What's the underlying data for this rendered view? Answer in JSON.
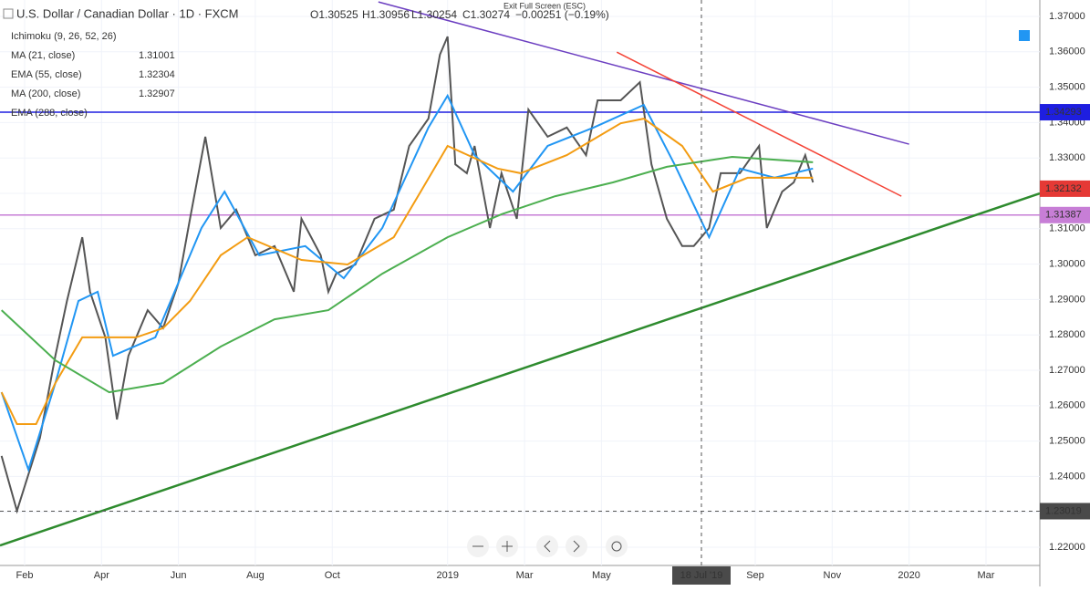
{
  "header": {
    "exit_hint": "Exit Full Screen (ESC)",
    "ohlc": [
      "O1.30525",
      "H1.30956",
      "L1.30254",
      "C1.30274",
      "−0.00251 (−0.19%)"
    ],
    "indicators": [
      "Ichimoku (9, 26, 52, 26)",
      "EMA (288, close)"
    ]
  },
  "chart_data": {
    "type": "line",
    "title": "U.S. Dollar / Canadian Dollar · 1D · FXCM",
    "xlim": [
      0.36,
      27.4
    ],
    "ylim": [
      1.21485,
      1.37464
    ],
    "xticks": [
      {
        "value": 1,
        "label": "Feb"
      },
      {
        "value": 3,
        "label": "Apr"
      },
      {
        "value": 5,
        "label": "Jun"
      },
      {
        "value": 7,
        "label": "Aug"
      },
      {
        "value": 9,
        "label": "Oct"
      },
      {
        "value": 12,
        "label": "2019"
      },
      {
        "value": 14,
        "label": "Mar"
      },
      {
        "value": 16,
        "label": "May"
      },
      {
        "value": 20,
        "label": "Sep"
      },
      {
        "value": 22,
        "label": "Nov"
      },
      {
        "value": 24,
        "label": "2020"
      },
      {
        "value": 26,
        "label": "Mar"
      }
    ],
    "yticks": [
      {
        "value": 1.22,
        "label": "1.22000"
      },
      {
        "value": 1.23,
        "label": "1.23000"
      },
      {
        "value": 1.24,
        "label": "1.24000"
      },
      {
        "value": 1.25,
        "label": "1.25000"
      },
      {
        "value": 1.26,
        "label": "1.26000"
      },
      {
        "value": 1.27,
        "label": "1.27000"
      },
      {
        "value": 1.28,
        "label": "1.28000"
      },
      {
        "value": 1.29,
        "label": "1.29000"
      },
      {
        "value": 1.3,
        "label": "1.30000"
      },
      {
        "value": 1.31,
        "label": "1.31000"
      },
      {
        "value": 1.32,
        "label": "1.32000"
      },
      {
        "value": 1.33,
        "label": "1.33000"
      },
      {
        "value": 1.34,
        "label": "1.34000"
      },
      {
        "value": 1.35,
        "label": "1.35000"
      },
      {
        "value": 1.36,
        "label": "1.36000"
      },
      {
        "value": 1.37,
        "label": "1.37000"
      }
    ],
    "series": [
      {
        "color": "#555555",
        "x": [
          0.4,
          0.8,
          1.1,
          1.4,
          1.8,
          2.1,
          2.5,
          2.7,
          3.1,
          3.4,
          3.7,
          4.2,
          4.6,
          5.0,
          5.3,
          5.7,
          6.1,
          6.5,
          7.0,
          7.5,
          8.0,
          8.2,
          8.7,
          8.9,
          9.1,
          9.6,
          10.1,
          10.6,
          11.0,
          11.5,
          11.8,
          12.0,
          12.2,
          12.5,
          12.7,
          13.1,
          13.4,
          13.8,
          14.1,
          14.6,
          15.1,
          15.6,
          15.9,
          16.5,
          17.0,
          17.3,
          17.7,
          18.1,
          18.4,
          18.8,
          19.1,
          19.6,
          20.1,
          20.3,
          20.7,
          21.0,
          21.3,
          21.5
        ],
        "values": [
          1.2458,
          1.2303,
          1.2406,
          1.2509,
          1.2741,
          1.2896,
          1.3076,
          1.2922,
          1.2793,
          1.2561,
          1.2741,
          1.287,
          1.2819,
          1.2947,
          1.3128,
          1.336,
          1.3102,
          1.3154,
          1.3025,
          1.3051,
          1.2922,
          1.3128,
          1.3025,
          1.2922,
          1.2973,
          1.2999,
          1.3128,
          1.3154,
          1.3334,
          1.3411,
          1.3592,
          1.3643,
          1.3282,
          1.3257,
          1.3334,
          1.3102,
          1.3257,
          1.3128,
          1.3437,
          1.336,
          1.3386,
          1.3308,
          1.3463,
          1.3463,
          1.3514,
          1.3282,
          1.3128,
          1.3051,
          1.3051,
          1.3102,
          1.3257,
          1.3257,
          1.3334,
          1.3102,
          1.3205,
          1.3231,
          1.3308,
          1.3231
        ]
      },
      {
        "name": "MA (21, close)",
        "legend_value": "1.31001",
        "color": "#2196f3",
        "x": [
          0.4,
          1.1,
          1.8,
          2.4,
          2.9,
          3.3,
          4.4,
          5.6,
          6.2,
          7.1,
          8.3,
          9.3,
          10.3,
          11.5,
          12.0,
          12.7,
          13.7,
          14.6,
          15.8,
          17.1,
          17.9,
          18.8,
          19.6,
          20.5,
          21.5
        ],
        "values": [
          1.2638,
          1.2419,
          1.2664,
          1.2896,
          1.2922,
          1.2741,
          1.2793,
          1.3102,
          1.3205,
          1.3025,
          1.3051,
          1.296,
          1.3102,
          1.3386,
          1.3476,
          1.3308,
          1.3205,
          1.3334,
          1.3386,
          1.345,
          1.3282,
          1.3076,
          1.327,
          1.3244,
          1.327
        ]
      },
      {
        "name": "EMA (55, close)",
        "legend_value": "1.32304",
        "color": "#f39c12",
        "x": [
          0.4,
          0.8,
          1.3,
          1.8,
          2.5,
          3.9,
          4.6,
          5.3,
          6.1,
          6.8,
          8.2,
          9.4,
          10.6,
          11.3,
          12.0,
          13.3,
          13.9,
          15.1,
          16.5,
          17.1,
          18.1,
          18.9,
          19.8,
          21.5
        ],
        "values": [
          1.2638,
          1.2548,
          1.2548,
          1.2664,
          1.2793,
          1.2793,
          1.2819,
          1.2896,
          1.3025,
          1.3076,
          1.3012,
          1.2999,
          1.3076,
          1.3205,
          1.3334,
          1.327,
          1.3257,
          1.3308,
          1.3398,
          1.3411,
          1.3334,
          1.3205,
          1.3244,
          1.3244
        ]
      },
      {
        "name": "MA (200, close)",
        "legend_value": "1.32907",
        "color": "#4caf50",
        "x": [
          0.4,
          1.8,
          3.2,
          4.6,
          6.1,
          7.5,
          8.9,
          10.3,
          12.0,
          13.4,
          14.8,
          16.3,
          17.7,
          19.4,
          21.5
        ],
        "values": [
          1.287,
          1.2728,
          1.2638,
          1.2664,
          1.2767,
          1.2844,
          1.287,
          1.2973,
          1.3076,
          1.3141,
          1.3192,
          1.3231,
          1.3275,
          1.3303,
          1.3288
        ]
      }
    ],
    "trendlines": [
      {
        "color": "#6c3fc1",
        "x": [
          10.2,
          24.0
        ],
        "values": [
          1.3741,
          1.3339
        ]
      },
      {
        "color": "#f44336",
        "x": [
          16.4,
          23.8
        ],
        "values": [
          1.3599,
          1.3192
        ]
      },
      {
        "color": "#2e8b2e",
        "x": [
          0.36,
          27.4
        ],
        "values": [
          1.2205,
          1.32
        ]
      }
    ],
    "hlines": [
      {
        "value": 1.34293,
        "color": "#1e1ee0"
      },
      {
        "value": 1.31387,
        "color": "#c77ed6"
      }
    ],
    "last_price": {
      "value": 1.32132,
      "color": "#e53935"
    },
    "crosshair": {
      "x": {
        "value": 18.6,
        "label": "18 Jul '19"
      },
      "y": 1.23019
    }
  }
}
